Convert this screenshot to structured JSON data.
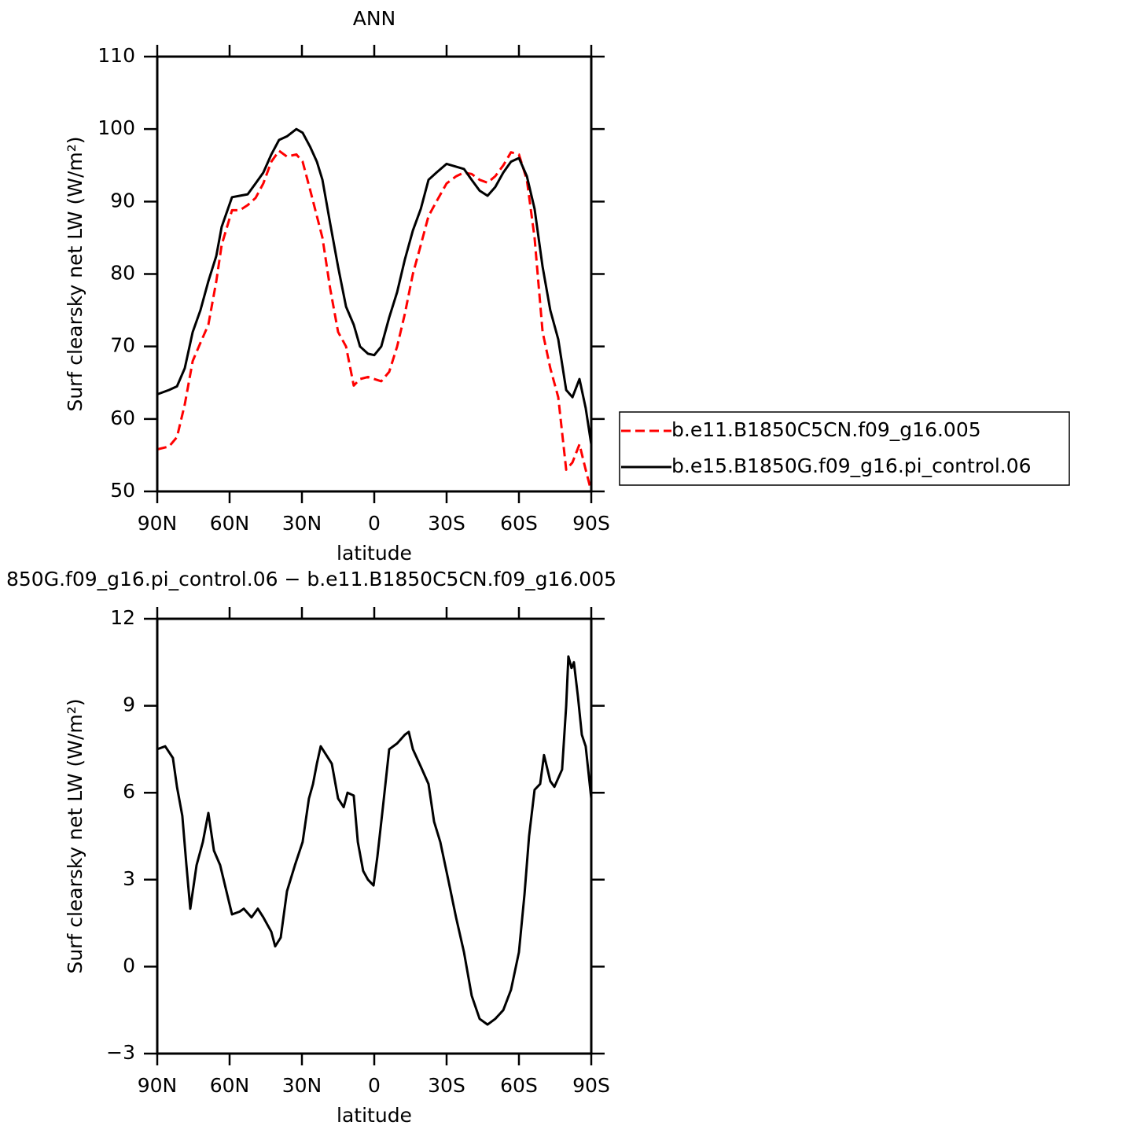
{
  "chart_data": [
    {
      "type": "line",
      "title": "ANN",
      "xlabel": "latitude",
      "ylabel": "Surf clearsky net LW (W/m²)",
      "xlim": [
        90,
        -90
      ],
      "xticks": [
        {
          "value": 90,
          "label": "90N"
        },
        {
          "value": 60,
          "label": "60N"
        },
        {
          "value": 30,
          "label": "30N"
        },
        0,
        {
          "value": -30,
          "label": "30S"
        },
        {
          "value": -60,
          "label": "60S"
        },
        {
          "value": -90,
          "label": "90S"
        }
      ],
      "ylim": [
        50,
        110
      ],
      "yticks": [
        50,
        60,
        70,
        80,
        90,
        100,
        110
      ],
      "legend": "right",
      "x": [
        90,
        85.1,
        81.8,
        78.6,
        75.3,
        72.1,
        68.8,
        65.5,
        63.3,
        59,
        55.8,
        52.5,
        49.2,
        46,
        42.7,
        39.5,
        36.2,
        32.3,
        29.7,
        26.5,
        23.8,
        21.5,
        18.3,
        15,
        11.7,
        8.5,
        5.9,
        2.6,
        0,
        -2.9,
        -6.2,
        -9.5,
        -12.7,
        -16,
        -19.3,
        -22.5,
        -25.8,
        -30,
        -34,
        -37.2,
        -40.4,
        -43.7,
        -47,
        -50.2,
        -53.5,
        -56.7,
        -60,
        -63.3,
        -66.5,
        -69.8,
        -73,
        -76.3,
        -79.6,
        -82.2,
        -85.1,
        -87.7,
        -90
      ],
      "series": [
        {
          "name": "b.e11.B1850C5CN.f09_g16.005",
          "color": "#ff0000",
          "linestyle": "dashed",
          "values": [
            55.8,
            56.2,
            57.5,
            62,
            68,
            70.5,
            73,
            79,
            84,
            88.8,
            88.8,
            89.5,
            90.5,
            92.5,
            95.5,
            97,
            96.2,
            96.5,
            95.5,
            91.5,
            88,
            85,
            78,
            72,
            70,
            64.6,
            65.5,
            65.8,
            65.5,
            65.2,
            66.5,
            70,
            74.5,
            80,
            84,
            88,
            90,
            92.5,
            93.5,
            94,
            93.8,
            93,
            92.6,
            93.5,
            95,
            96.8,
            96.5,
            93,
            85,
            72,
            67,
            63,
            53,
            54,
            56.5,
            53,
            50
          ]
        },
        {
          "name": "b.e15.B1850G.f09_g16.pi_control.06",
          "color": "#000000",
          "linestyle": "solid",
          "values": [
            63.4,
            64,
            64.5,
            67,
            72,
            75,
            79,
            82.5,
            86.5,
            90.6,
            90.8,
            91,
            92.5,
            94,
            96.5,
            98.5,
            99,
            100,
            99.5,
            97.5,
            95.5,
            93,
            87,
            81,
            75.5,
            73,
            70,
            69,
            68.8,
            70,
            74,
            77.5,
            82,
            86,
            89,
            93,
            94,
            95.2,
            94.8,
            94.5,
            93,
            91.5,
            90.8,
            92,
            94,
            95.5,
            96,
            93.5,
            89,
            81,
            75,
            71,
            64,
            63,
            65.5,
            61.5,
            56.5
          ]
        }
      ]
    },
    {
      "type": "line",
      "title": "850G.f09_g16.pi_control.06 − b.e11.B1850C5CN.f09_g16.005",
      "xlabel": "latitude",
      "ylabel": "Surf clearsky net LW (W/m²)",
      "xlim": [
        90,
        -90
      ],
      "xticks": [
        {
          "value": 90,
          "label": "90N"
        },
        {
          "value": 60,
          "label": "60N"
        },
        {
          "value": 30,
          "label": "30N"
        },
        0,
        {
          "value": -30,
          "label": "30S"
        },
        {
          "value": -60,
          "label": "60S"
        },
        {
          "value": -90,
          "label": "90S"
        }
      ],
      "ylim": [
        -3,
        12
      ],
      "yticks": [
        {
          "value": -3,
          "label": "−3"
        },
        0,
        3,
        6,
        9,
        12
      ],
      "color": "#000000",
      "x": [
        90,
        86.7,
        83.5,
        81.8,
        79.6,
        77.9,
        76.3,
        73.7,
        71.1,
        68.8,
        66.5,
        63.9,
        61.6,
        59,
        55.8,
        54.1,
        50.9,
        48.3,
        46,
        42.7,
        41.1,
        38.8,
        36.2,
        32.9,
        29.7,
        27.1,
        25.4,
        23.8,
        22.2,
        19.9,
        17.6,
        15,
        12.7,
        11.1,
        8.5,
        6.8,
        4.6,
        2.6,
        0.3,
        -1.3,
        -3.6,
        -6.2,
        -9.5,
        -12.7,
        -14.3,
        -16,
        -19.3,
        -22.5,
        -24.8,
        -27.4,
        -30.7,
        -33.9,
        -37.2,
        -40.4,
        -43.7,
        -47,
        -50.2,
        -53.5,
        -56.7,
        -60,
        -62.3,
        -64.2,
        -66.5,
        -68.8,
        -70.4,
        -73,
        -74.7,
        -77.9,
        -79.6,
        -80.5,
        -81.8,
        -82.8,
        -84.5,
        -86.1,
        -87.7,
        -90
      ],
      "values": [
        7.5,
        7.6,
        7.2,
        6.2,
        5.2,
        3.5,
        2,
        3.5,
        4.3,
        5.3,
        4,
        3.5,
        2.7,
        1.8,
        1.9,
        2,
        1.7,
        2,
        1.7,
        1.2,
        0.7,
        1,
        2.6,
        3.5,
        4.3,
        5.8,
        6.3,
        7,
        7.6,
        7.3,
        7,
        5.8,
        5.5,
        6,
        5.9,
        4.3,
        3.3,
        3,
        2.8,
        3.8,
        5.5,
        7.5,
        7.7,
        8,
        8.1,
        7.5,
        6.9,
        6.3,
        5,
        4.3,
        3,
        1.7,
        0.5,
        -1,
        -1.8,
        -2,
        -1.8,
        -1.5,
        -0.8,
        0.5,
        2.5,
        4.5,
        6.1,
        6.3,
        7.3,
        6.4,
        6.2,
        6.8,
        9,
        10.7,
        10.3,
        10.5,
        9.3,
        8,
        7.6,
        5.8
      ]
    }
  ]
}
